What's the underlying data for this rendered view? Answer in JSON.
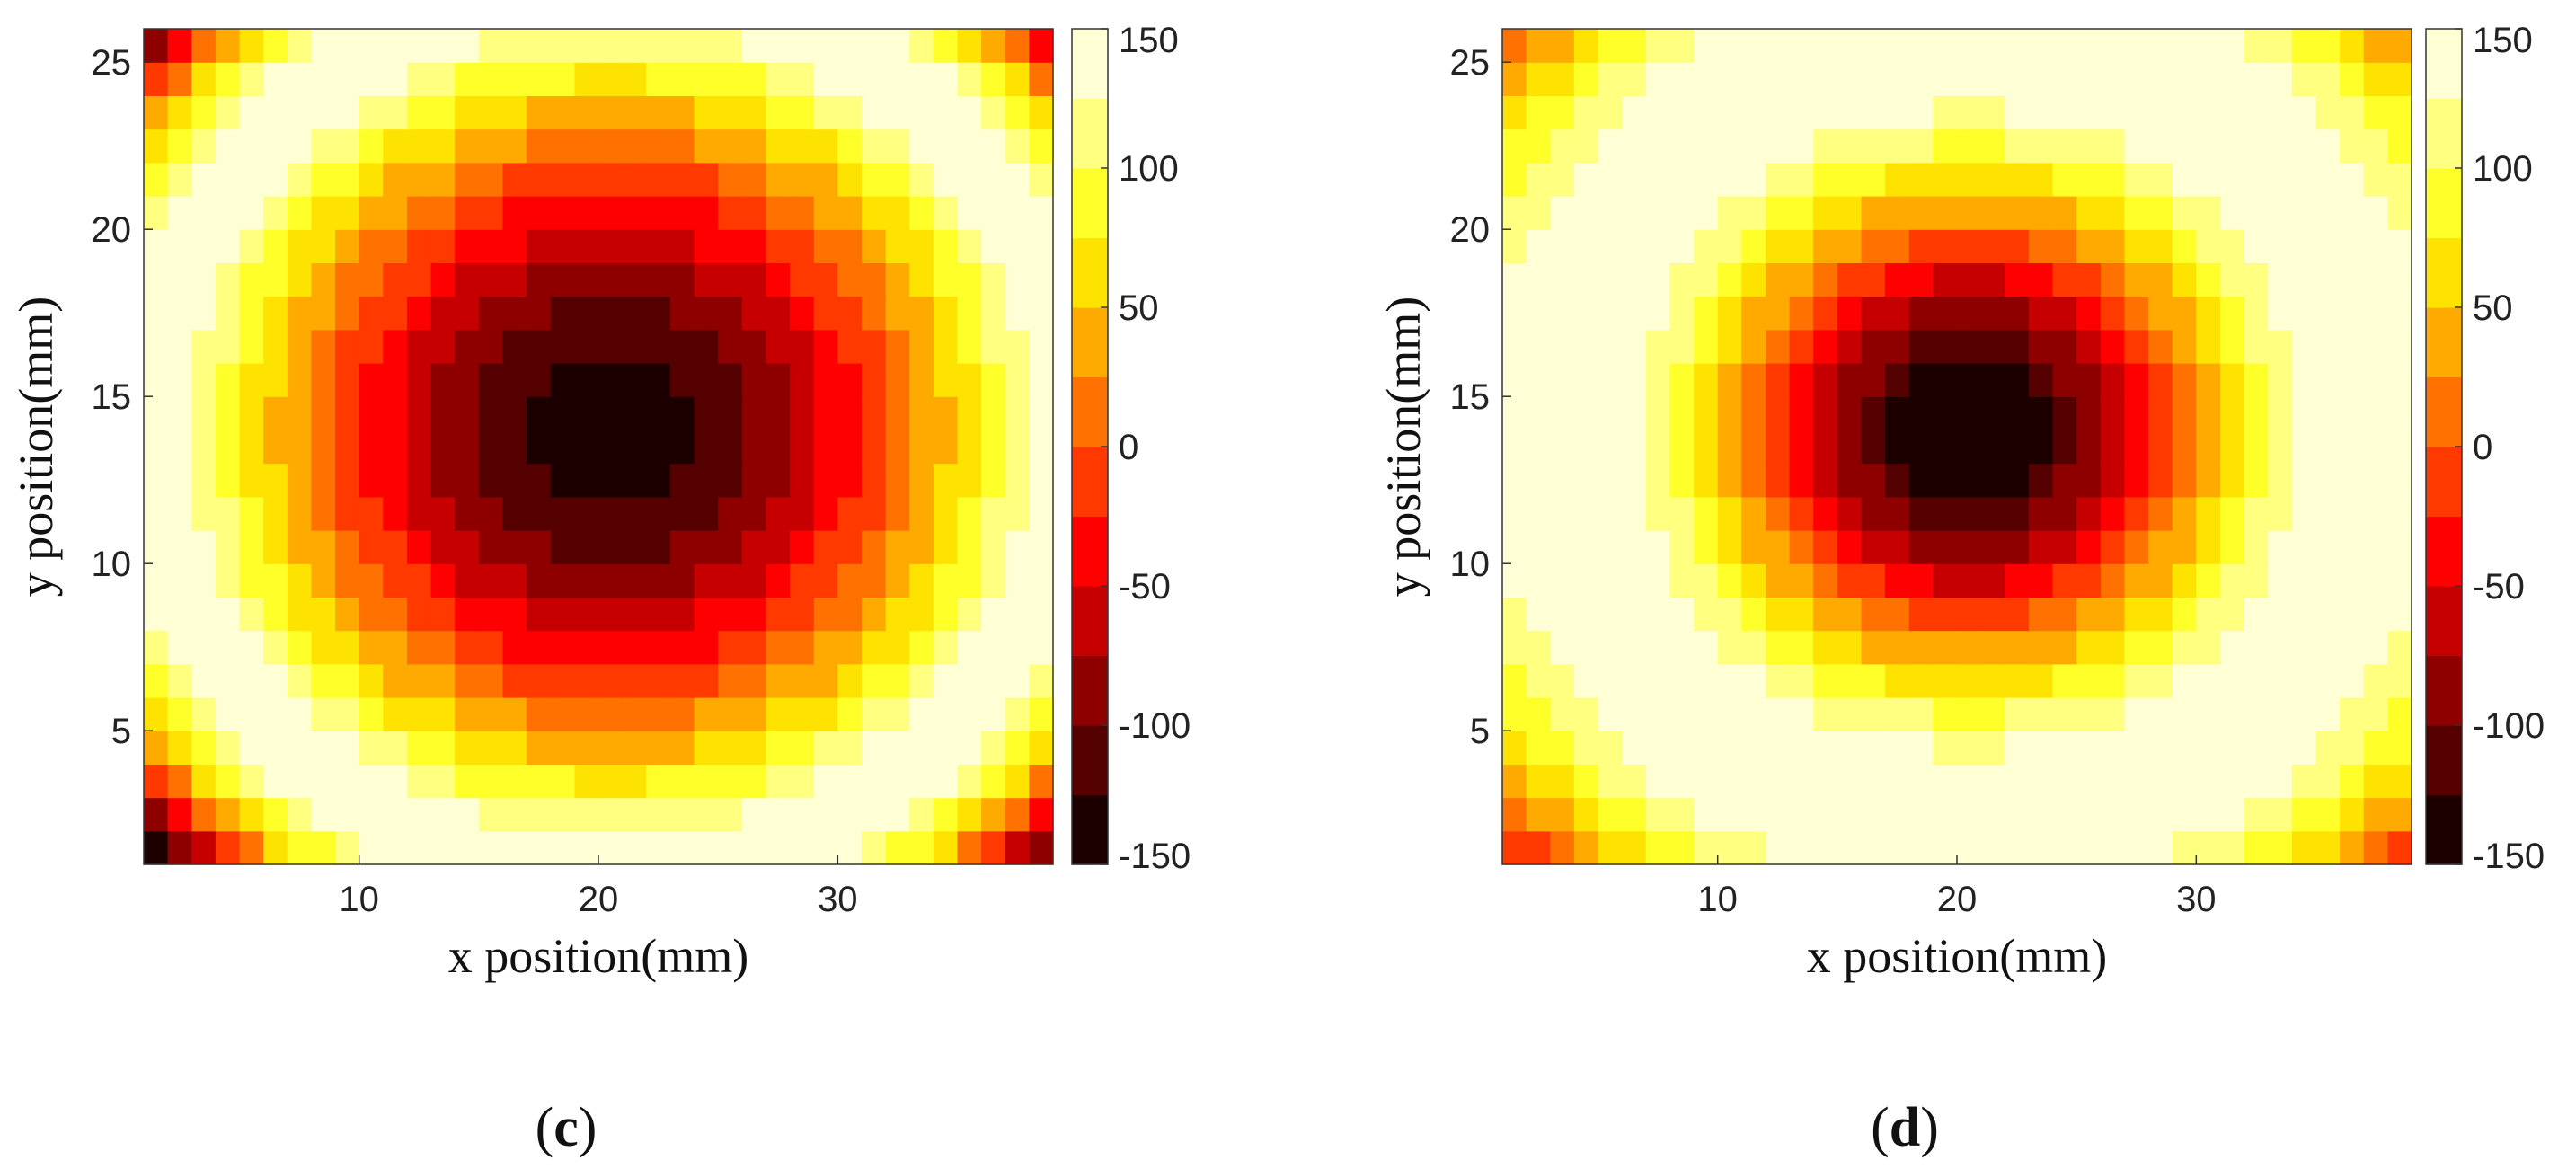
{
  "chart_data": [
    {
      "type": "heatmap",
      "panel_label_open": "(",
      "panel_letter": "c",
      "panel_label_close": ")",
      "xlabel": "x position(mm)",
      "ylabel": "y position(mm)",
      "xlim": [
        1,
        39
      ],
      "ylim": [
        1,
        26
      ],
      "nx": 38,
      "ny": 25,
      "x_ticks": [
        10,
        20,
        30
      ],
      "y_ticks": [
        5,
        10,
        15,
        20,
        25
      ],
      "field": {
        "type": "radial",
        "center_x": 20.5,
        "center_y": 14,
        "scale_x": 1.0,
        "scale_y": 1.45,
        "r_ring": 18.5,
        "bottom": -150,
        "top": 150,
        "outside_fall": 20
      },
      "colorbar": {
        "min": -150,
        "max": 150,
        "ticks": [
          150,
          100,
          50,
          0,
          -50,
          -100,
          -150
        ],
        "levels": 12,
        "colormap": "hot"
      }
    },
    {
      "type": "heatmap",
      "panel_label_open": "(",
      "panel_letter": "d",
      "panel_label_close": ")",
      "xlabel": "x position(mm)",
      "ylabel": "y position(mm)",
      "xlim": [
        1,
        39
      ],
      "ylim": [
        1,
        26
      ],
      "nx": 38,
      "ny": 25,
      "x_ticks": [
        10,
        20,
        30
      ],
      "y_ticks": [
        5,
        10,
        15,
        20,
        25
      ],
      "field": {
        "type": "oscillating",
        "center_x": 20.5,
        "center_y": 14,
        "scale_x": 1.0,
        "scale_y": 1.45,
        "radial_period": 34,
        "amplitude": 150
      },
      "colorbar": {
        "min": -150,
        "max": 150,
        "ticks": [
          150,
          100,
          50,
          0,
          -50,
          -100,
          -150
        ],
        "levels": 12,
        "colormap": "hot"
      }
    }
  ]
}
